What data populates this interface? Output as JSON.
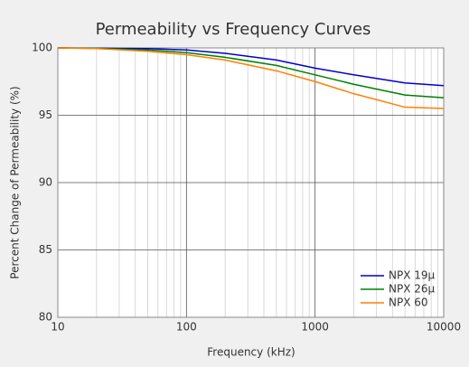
{
  "chart_data": {
    "type": "line",
    "title": "Permeability vs Frequency Curves",
    "xlabel": "Frequency (kHz)",
    "ylabel": "Percent Change of Permeability (%)",
    "x": [
      10,
      20,
      50,
      100,
      200,
      500,
      1000,
      2000,
      5000,
      10000
    ],
    "series": [
      {
        "name": "NPX 19μ",
        "color": "#0000cc",
        "values": [
          100,
          99.98,
          99.95,
          99.85,
          99.6,
          99.1,
          98.5,
          98.0,
          97.4,
          97.2
        ]
      },
      {
        "name": "NPX 26μ",
        "color": "#008000",
        "values": [
          100,
          99.97,
          99.85,
          99.65,
          99.3,
          98.7,
          98.0,
          97.3,
          96.5,
          96.3
        ]
      },
      {
        "name": "NPX 60",
        "color": "#ff8000",
        "values": [
          100,
          99.95,
          99.75,
          99.5,
          99.1,
          98.3,
          97.5,
          96.6,
          95.6,
          95.5
        ]
      }
    ],
    "xscale": "log",
    "xlim": [
      10,
      10000
    ],
    "xticks": [
      10,
      100,
      1000,
      10000
    ],
    "ylim": [
      80,
      100
    ],
    "yticks": [
      80,
      85,
      90,
      95,
      100
    ],
    "grid": true,
    "minor_grid": true,
    "legend": "lower right"
  }
}
